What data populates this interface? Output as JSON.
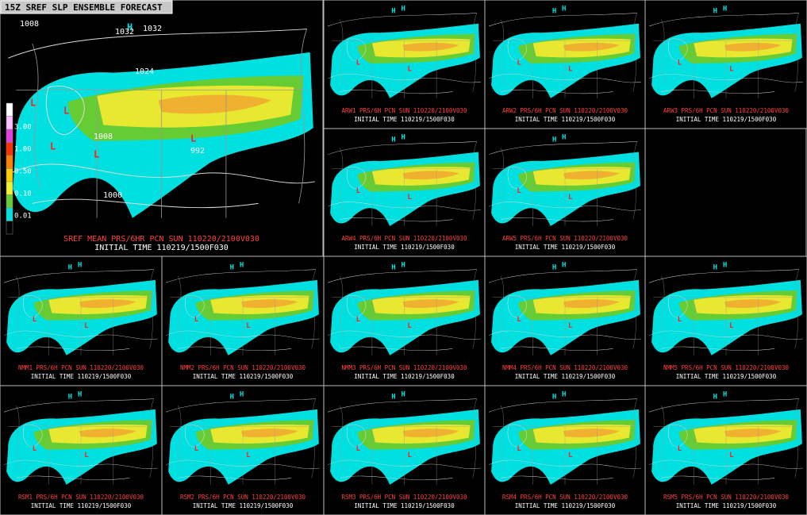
{
  "title": "15Z SREF SLP ENSEMBLE FORECAST",
  "main": {
    "caption": "SREF MEAN PRS/6HR PCN  SUN 110220/2100V030",
    "init": "INITIAL TIME 110219/1500F030",
    "legend": [
      "3.00",
      "1.00",
      "0.50",
      "0.10",
      "0.01"
    ],
    "pressure_labels": [
      "1008",
      "1032",
      "1032",
      "1024",
      "1008",
      "992",
      "1000"
    ],
    "symbols": [
      "H",
      "L",
      "L",
      "L",
      "L",
      "L"
    ]
  },
  "members": [
    {
      "caption": "ARW1 PRS/6H PCN  SUN 110220/2100V030",
      "init": "INITIAL TIME 110219/1500F030",
      "symbols": [
        "H",
        "H",
        "L",
        "L"
      ]
    },
    {
      "caption": "ARW2 PRS/6H PCN  SUN 110220/2100V030",
      "init": "INITIAL TIME 110219/1500F030",
      "symbols": [
        "H",
        "H",
        "L",
        "L"
      ]
    },
    {
      "caption": "ARW3 PRS/6H PCN  SUN 110220/2100V030",
      "init": "INITIAL TIME 110219/1500F030",
      "symbols": [
        "H",
        "H",
        "L",
        "L"
      ]
    },
    {
      "caption": "ARW4 PRS/6H PCN  SUN 110220/2100V030",
      "init": "INITIAL TIME 110219/1500F030",
      "symbols": [
        "H",
        "H",
        "L",
        "L"
      ]
    },
    {
      "caption": "ARW5 PRS/6H PCN  SUN 110220/2100V030",
      "init": "INITIAL TIME 110219/1500F030",
      "symbols": [
        "H",
        "H",
        "L",
        "L"
      ]
    },
    {
      "caption": "NMM1 PRS/6H PCN  SUN 110220/2100V030",
      "init": "INITIAL TIME 110219/1500F030",
      "symbols": [
        "H",
        "H",
        "L",
        "L"
      ]
    },
    {
      "caption": "NMM2 PRS/6H PCN  SUN 110220/2100V030",
      "init": "INITIAL TIME 110219/1500F030",
      "symbols": [
        "H",
        "H",
        "L",
        "L"
      ]
    },
    {
      "caption": "NMM3 PRS/6H PCN  SUN 110220/2100V030",
      "init": "INITIAL TIME 110219/1500F030",
      "symbols": [
        "H",
        "H",
        "L",
        "L"
      ]
    },
    {
      "caption": "NMM4 PRS/6H PCN  SUN 110220/2100V030",
      "init": "INITIAL TIME 110219/1500F030",
      "symbols": [
        "H",
        "H",
        "L",
        "L"
      ]
    },
    {
      "caption": "NMM5 PRS/6H PCN  SUN 110220/2100V030",
      "init": "INITIAL TIME 110219/1500F030",
      "symbols": [
        "H",
        "H",
        "L",
        "L"
      ]
    },
    {
      "caption": "RSM1 PRS/6H PCN  SUN 110220/2100V030",
      "init": "INITIAL TIME 110219/1500F030",
      "symbols": [
        "H",
        "H",
        "L",
        "L"
      ]
    },
    {
      "caption": "RSM2 PRS/6H PCN  SUN 110220/2100V030",
      "init": "INITIAL TIME 110219/1500F030",
      "symbols": [
        "H",
        "H",
        "L",
        "L"
      ]
    },
    {
      "caption": "RSM3 PRS/6H PCN  SUN 110220/2100V030",
      "init": "INITIAL TIME 110219/1500F030",
      "symbols": [
        "H",
        "H",
        "L",
        "L"
      ]
    },
    {
      "caption": "RSM4 PRS/6H PCN  SUN 110220/2100V030",
      "init": "INITIAL TIME 110219/1500F030",
      "symbols": [
        "H",
        "H",
        "L",
        "L"
      ]
    },
    {
      "caption": "RSM5 PRS/6H PCN  SUN 110220/2100V030",
      "init": "INITIAL TIME 110219/1500F030",
      "symbols": [
        "H",
        "H",
        "L",
        "L"
      ]
    }
  ]
}
